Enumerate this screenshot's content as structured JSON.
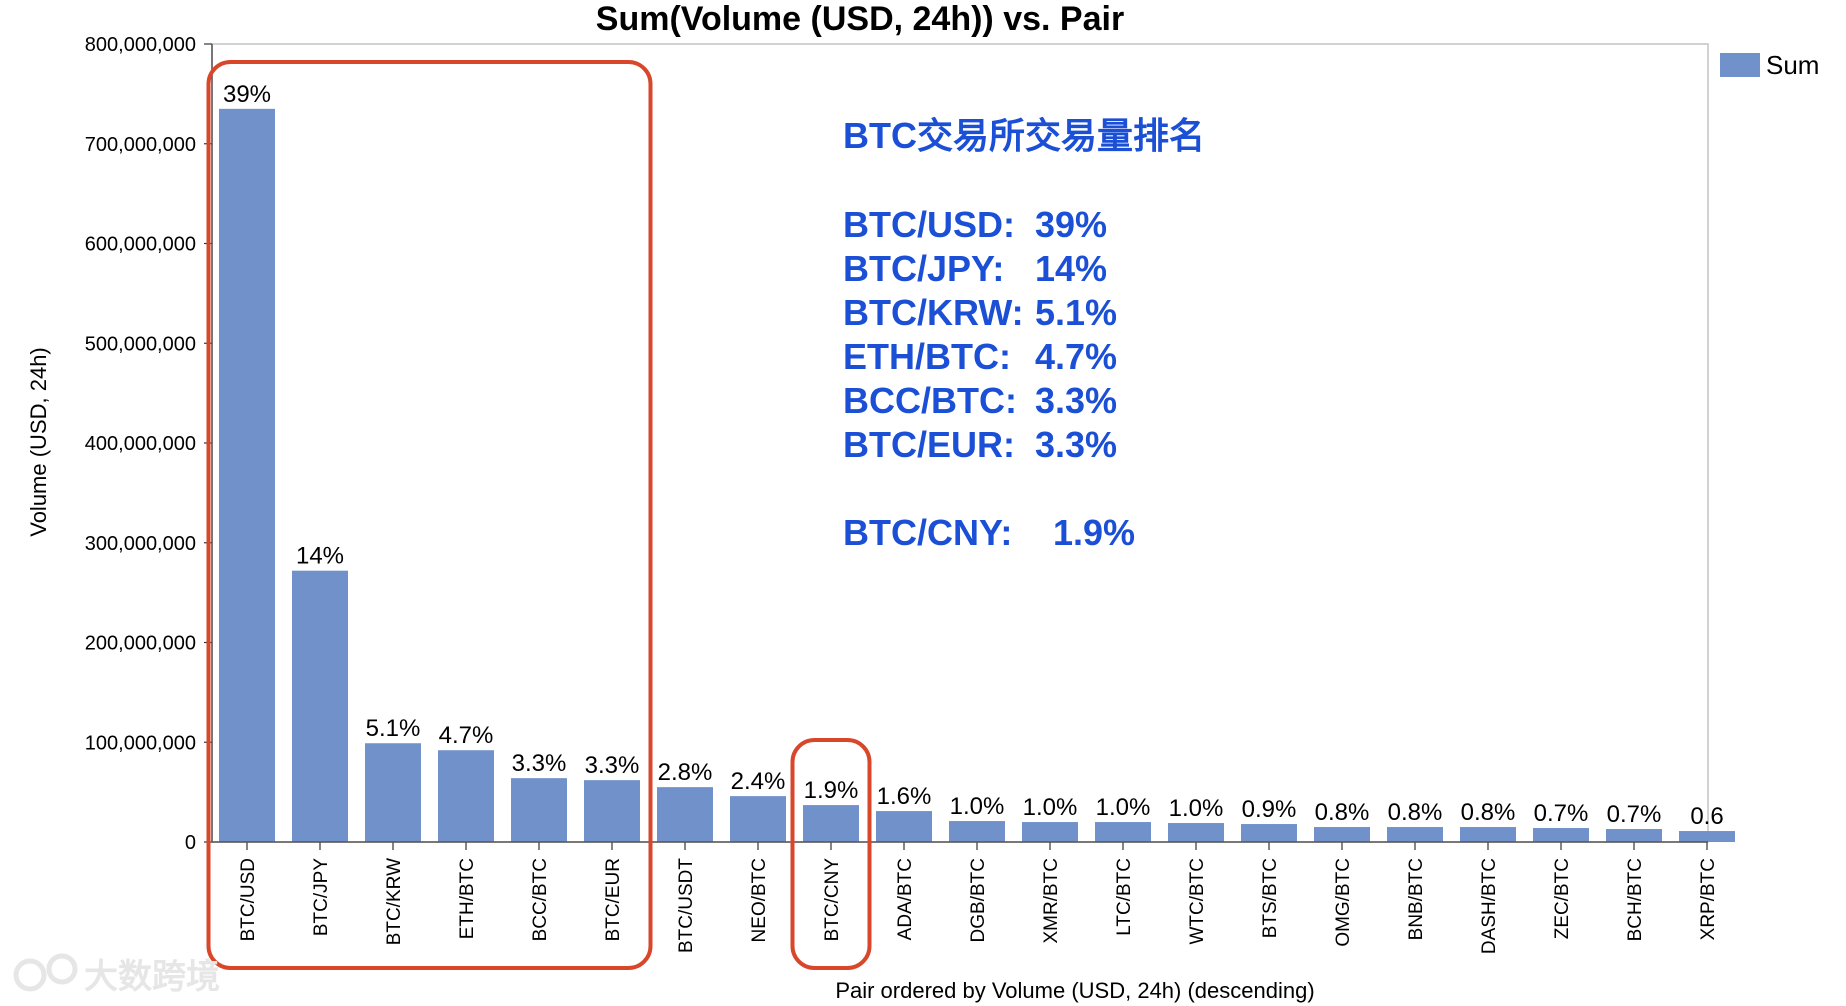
{
  "chart_data": {
    "type": "bar",
    "title": "Sum(Volume (USD, 24h)) vs. Pair",
    "xlabel": "Pair ordered by Volume (USD, 24h) (descending)",
    "ylabel": "Volume (USD, 24h)",
    "ylim": [
      0,
      800000000
    ],
    "yticks": [
      "0",
      "100,000,000",
      "200,000,000",
      "300,000,000",
      "400,000,000",
      "500,000,000",
      "600,000,000",
      "700,000,000",
      "800,000,000"
    ],
    "legend": {
      "label": "Sum",
      "position": "top-right"
    },
    "grid": false,
    "categories": [
      "BTC/USD",
      "BTC/JPY",
      "BTC/KRW",
      "ETH/BTC",
      "BCC/BTC",
      "BTC/EUR",
      "BTC/USDT",
      "NEO/BTC",
      "BTC/CNY",
      "ADA/BTC",
      "DGB/BTC",
      "XMR/BTC",
      "LTC/BTC",
      "WTC/BTC",
      "BTS/BTC",
      "OMG/BTC",
      "BNB/BTC",
      "DASH/BTC",
      "ZEC/BTC",
      "BCH/BTC",
      "XRP/BTC"
    ],
    "series": [
      {
        "name": "Sum",
        "values": [
          735000000,
          272000000,
          99000000,
          92000000,
          64000000,
          62000000,
          55000000,
          46000000,
          37000000,
          31000000,
          21000000,
          20000000,
          20000000,
          19000000,
          18000000,
          15000000,
          15000000,
          15000000,
          14000000,
          13000000,
          11000000
        ],
        "data_labels": [
          "39%",
          "14%",
          "5.1%",
          "4.7%",
          "3.3%",
          "3.3%",
          "2.8%",
          "2.4%",
          "1.9%",
          "1.6%",
          "1.0%",
          "1.0%",
          "1.0%",
          "1.0%",
          "0.9%",
          "0.8%",
          "0.8%",
          "0.8%",
          "0.7%",
          "0.7%",
          "0.6"
        ]
      }
    ],
    "highlight_boxes": [
      {
        "from_category": "BTC/USD",
        "to_category": "BTC/EUR"
      },
      {
        "from_category": "BTC/CNY",
        "to_category": "BTC/CNY"
      }
    ]
  },
  "colors": {
    "bar": "#7091c9",
    "annotation": "#1a4fd6",
    "highlight_box": "#d9472b",
    "axis": "#888888"
  },
  "annotation": {
    "heading": "BTC交易所交易量排名",
    "lines": [
      {
        "pair": "BTC/USD:",
        "share": "39%"
      },
      {
        "pair": "BTC/JPY:",
        "share": "14%"
      },
      {
        "pair": "BTC/KRW:",
        "share": "5.1%"
      },
      {
        "pair": "ETH/BTC:",
        "share": "4.7%"
      },
      {
        "pair": "BCC/BTC:",
        "share": "3.3%"
      },
      {
        "pair": "BTC/EUR:",
        "share": "3.3%"
      }
    ],
    "extra_line": {
      "pair": "BTC/CNY:",
      "share": "1.9%"
    }
  },
  "watermark": "大数跨境"
}
